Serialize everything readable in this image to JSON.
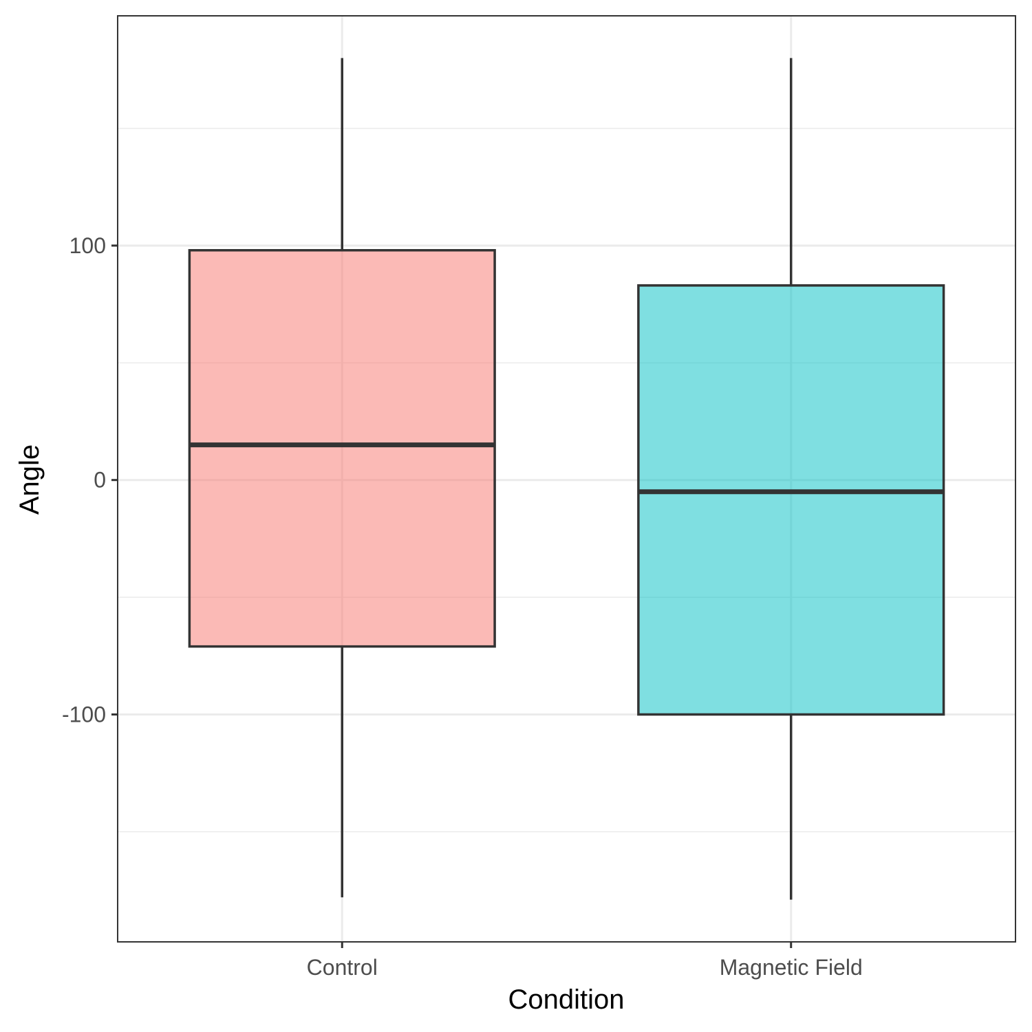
{
  "chart_data": {
    "type": "boxplot",
    "xlabel": "Condition",
    "ylabel": "Angle",
    "categories": [
      "Control",
      "Magnetic Field"
    ],
    "boxes": [
      {
        "category": "Control",
        "min": -178,
        "q1": -71,
        "median": 15,
        "q3": 98,
        "max": 180,
        "fill": "#F8766D"
      },
      {
        "category": "Magnetic Field",
        "min": -179,
        "q1": -100,
        "median": -5,
        "q3": 83,
        "max": 180,
        "fill": "#00BFC4"
      }
    ],
    "yticks": [
      -100,
      0,
      100
    ],
    "ytick_labels": [
      "-100",
      "0",
      "100"
    ],
    "ylim": [
      -197,
      198
    ],
    "grid": true,
    "legend": "none"
  }
}
